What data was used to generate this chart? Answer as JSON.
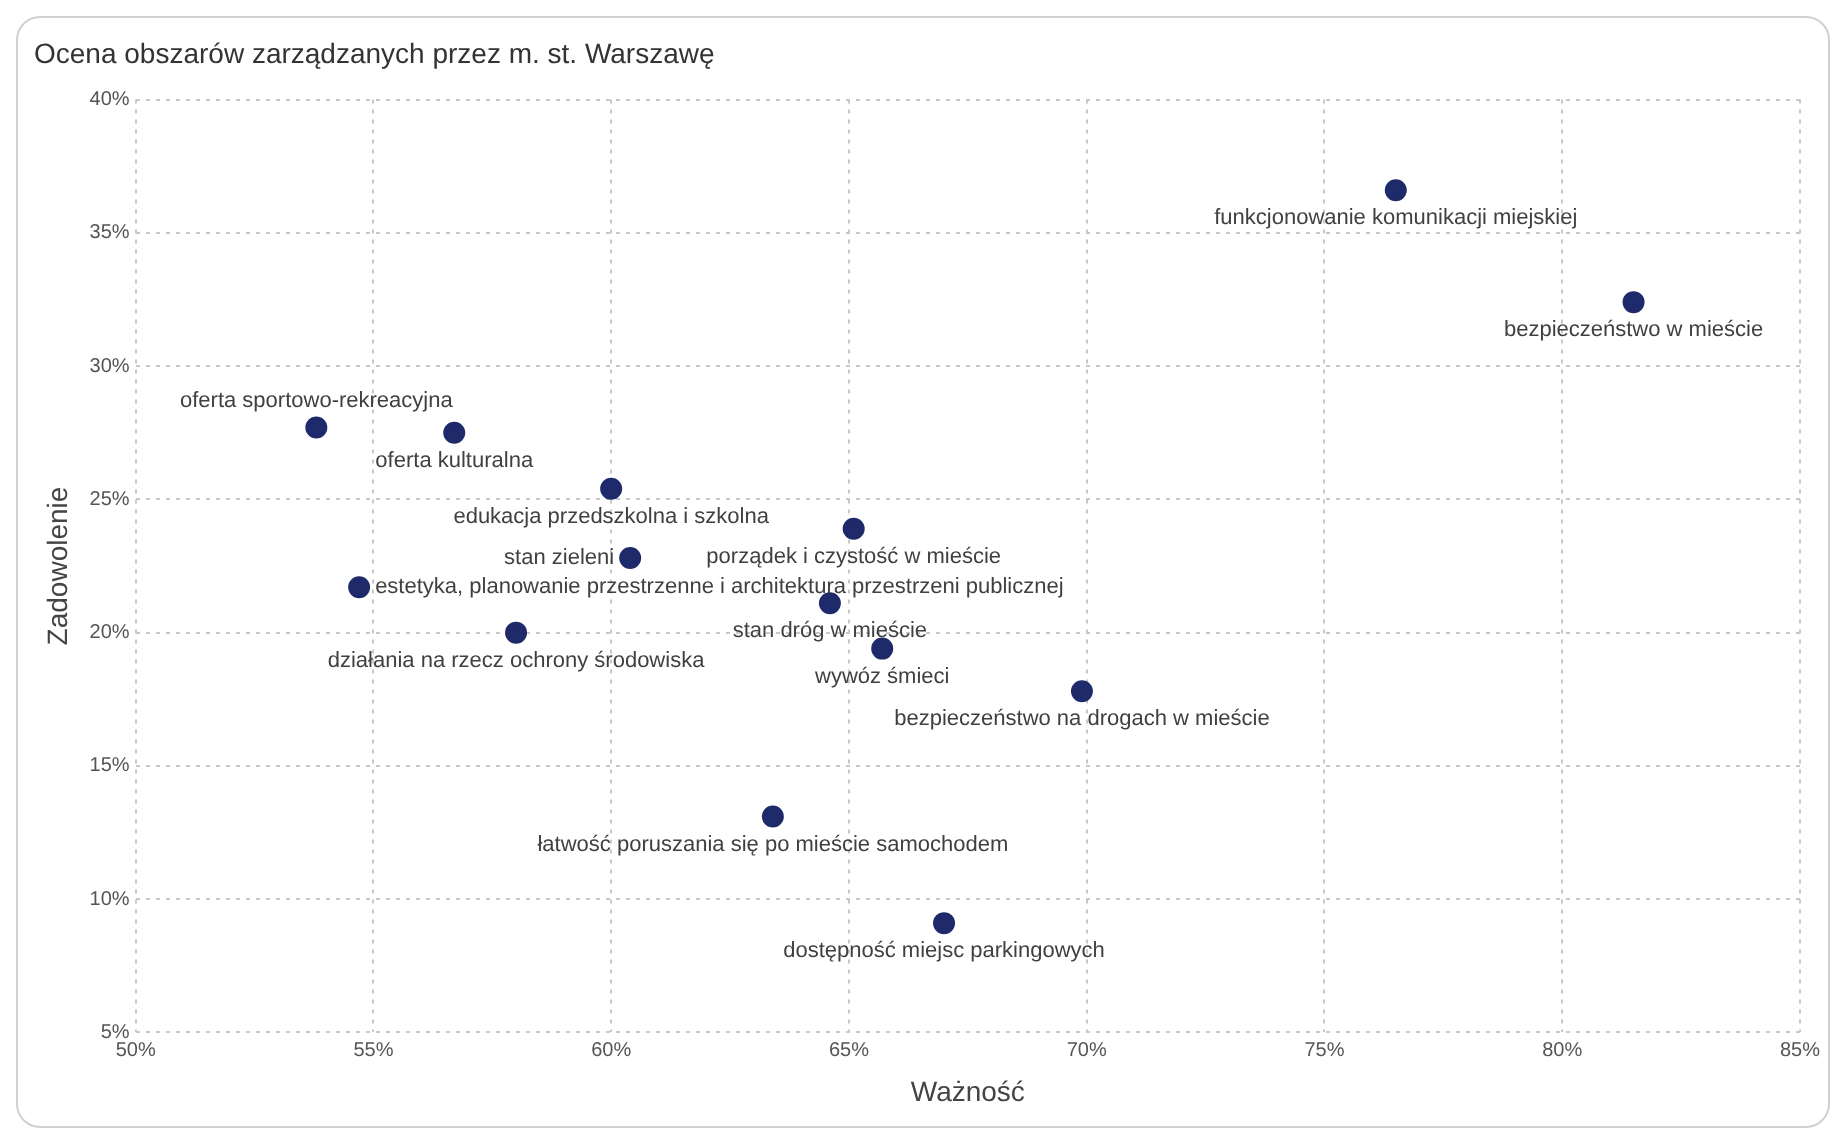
{
  "chart_data": {
    "type": "scatter",
    "title": "Ocena obszarów zarządzanych przez m. st. Warszawę",
    "xlabel": "Ważność",
    "ylabel": "Zadowolenie",
    "x": [
      76.5,
      81.5,
      53.8,
      56.7,
      60.0,
      60.4,
      65.1,
      54.7,
      64.6,
      58.0,
      65.7,
      69.9,
      63.4,
      67.0
    ],
    "series": [
      {
        "color": "#1f2a6b",
        "values": [
          36.6,
          32.4,
          27.7,
          27.5,
          25.4,
          22.8,
          23.9,
          21.7,
          21.1,
          20.0,
          19.4,
          17.8,
          13.1,
          9.1
        ]
      }
    ],
    "xlim": [
      50,
      85
    ],
    "xticks": [
      {
        "value": 50,
        "label": "50%"
      },
      {
        "value": 55,
        "label": "55%"
      },
      {
        "value": 60,
        "label": "60%"
      },
      {
        "value": 65,
        "label": "65%"
      },
      {
        "value": 70,
        "label": "70%"
      },
      {
        "value": 75,
        "label": "75%"
      },
      {
        "value": 80,
        "label": "80%"
      },
      {
        "value": 85,
        "label": "85%"
      }
    ],
    "ylim": [
      5,
      40
    ],
    "yticks": [
      {
        "value": 5,
        "label": "5%"
      },
      {
        "value": 10,
        "label": "10%"
      },
      {
        "value": 15,
        "label": "15%"
      },
      {
        "value": 20,
        "label": "20%"
      },
      {
        "value": 25,
        "label": "25%"
      },
      {
        "value": 30,
        "label": "30%"
      },
      {
        "value": 35,
        "label": "35%"
      },
      {
        "value": 40,
        "label": "40%"
      }
    ],
    "grid": true,
    "legend": false,
    "marker": "circle",
    "annotations": [
      {
        "text": "funkcjonowanie komunikacji miejskiej",
        "x": 76.5,
        "y": 36.6
      },
      {
        "text": "bezpieczeństwo w mieście",
        "x": 81.5,
        "y": 32.4
      },
      {
        "text": "oferta sportowo-rekreacyjna",
        "x": 53.8,
        "y": 27.7
      },
      {
        "text": "oferta kulturalna",
        "x": 56.7,
        "y": 27.5
      },
      {
        "text": "edukacja przedszkolna i szkolna",
        "x": 60.0,
        "y": 25.4
      },
      {
        "text": "stan zieleni",
        "x": 60.4,
        "y": 22.8
      },
      {
        "text": "porządek i czystość w mieście",
        "x": 65.1,
        "y": 23.9
      },
      {
        "text": "estetyka, planowanie przestrzenne i architektura przestrzeni publicznej",
        "x": 54.7,
        "y": 21.7
      },
      {
        "text": "stan dróg w mieście",
        "x": 64.6,
        "y": 21.1
      },
      {
        "text": "działania na rzecz ochrony środowiska",
        "x": 58.0,
        "y": 20.0
      },
      {
        "text": "wywóz śmieci",
        "x": 65.7,
        "y": 19.4
      },
      {
        "text": "bezpieczeństwo na drogach w mieście",
        "x": 69.9,
        "y": 17.8
      },
      {
        "text": "łatwość poruszania się po mieście samochodem",
        "x": 63.4,
        "y": 13.1
      },
      {
        "text": "dostępność miejsc parkingowych",
        "x": 67.0,
        "y": 9.1
      }
    ]
  }
}
